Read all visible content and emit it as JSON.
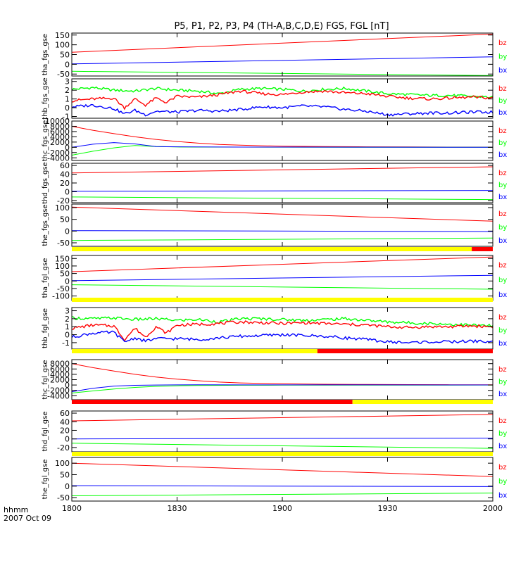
{
  "title": "P5, P1, P2, P3, P4 (TH-A,B,C,D,E) FGS, FGL [nT]",
  "footer": {
    "units_label": "hhmm",
    "date_label": "2007 Oct 09"
  },
  "colors": {
    "bx": "#0000ff",
    "by": "#00ff00",
    "bz": "#ff0000",
    "mode_slow": "#ffff00",
    "mode_fast": "#ff0000",
    "axis": "#000000"
  },
  "legend": [
    "bz",
    "by",
    "bx"
  ],
  "chart_data": {
    "type": "line",
    "x_axis": {
      "range": [
        0,
        120
      ],
      "tick_labels": [
        "1800",
        "1830",
        "1900",
        "1930",
        "2000"
      ],
      "unit": "minutes after 18:00 UT"
    },
    "panels": [
      {
        "id": "tha_fgs",
        "ylabel": "tha_fgs_gse",
        "ylim": [
          -60,
          160
        ],
        "yticks": [
          150,
          100,
          50,
          0,
          -50
        ],
        "series": [
          {
            "name": "bz",
            "x": [
              0,
              120
            ],
            "y": [
              62,
              155
            ]
          },
          {
            "name": "by",
            "x": [
              0,
              120
            ],
            "y": [
              -36,
              -58
            ]
          },
          {
            "name": "bx",
            "x": [
              0,
              120
            ],
            "y": [
              2,
              38
            ]
          }
        ]
      },
      {
        "id": "thb_fgs",
        "ylabel": "thb_fgs_gse",
        "ylim": [
          -1.2,
          3.3
        ],
        "yticks": [
          3,
          2,
          1,
          0,
          -1
        ],
        "series": [
          {
            "name": "by",
            "x": [
              0,
              6,
              12,
              18,
              24,
              30,
              36,
              42,
              48,
              54,
              60,
              66,
              72,
              78,
              84,
              90,
              96,
              102,
              108,
              114,
              120
            ],
            "y": [
              2.1,
              2.3,
              2.0,
              1.9,
              2.2,
              2.0,
              1.9,
              1.6,
              2.1,
              2.2,
              2.1,
              1.9,
              2.1,
              2.2,
              1.9,
              1.6,
              1.5,
              1.4,
              1.4,
              1.3,
              1.2
            ]
          },
          {
            "name": "bz",
            "x": [
              0,
              6,
              12,
              15,
              18,
              21,
              24,
              27,
              30,
              36,
              42,
              48,
              54,
              60,
              66,
              72,
              78,
              84,
              90,
              96,
              102,
              108,
              114,
              120
            ],
            "y": [
              0.8,
              1.0,
              1.1,
              0.0,
              1.0,
              0.3,
              1.1,
              0.6,
              1.3,
              1.2,
              1.5,
              1.9,
              1.6,
              1.5,
              1.8,
              1.9,
              1.7,
              1.6,
              1.3,
              1.1,
              1.0,
              1.1,
              1.2,
              1.1
            ]
          },
          {
            "name": "bx",
            "x": [
              0,
              6,
              12,
              15,
              18,
              21,
              24,
              30,
              36,
              42,
              48,
              54,
              60,
              66,
              72,
              78,
              84,
              90,
              96,
              102,
              108,
              114,
              120
            ],
            "y": [
              0.1,
              0.3,
              -0.1,
              -0.7,
              -0.3,
              -0.8,
              -0.4,
              -0.5,
              -0.3,
              -0.4,
              -0.2,
              0.1,
              0.0,
              0.2,
              0.1,
              -0.2,
              -0.4,
              -0.8,
              -0.7,
              -0.6,
              -0.6,
              -0.5,
              -0.5
            ]
          }
        ]
      },
      {
        "id": "thc_fgs",
        "ylabel": "thc_fgs_gse",
        "ylim": [
          -5000,
          10000
        ],
        "yticks": [
          10000,
          8000,
          6000,
          4000,
          2000,
          0,
          -2000,
          -4000
        ],
        "series": [
          {
            "name": "bz",
            "x": [
              0,
              6,
              12,
              18,
              24,
              30,
              36,
              42,
              48,
              54,
              60,
              72,
              84,
              96,
              108,
              120
            ],
            "y": [
              8000,
              6500,
              5200,
              4000,
              3000,
              2200,
              1600,
              1100,
              800,
              600,
              450,
              300,
              200,
              150,
              100,
              80
            ]
          },
          {
            "name": "by",
            "x": [
              0,
              6,
              12,
              18,
              24,
              30,
              36,
              48,
              60,
              84,
              108,
              120
            ],
            "y": [
              -3000,
              -1500,
              -200,
              700,
              300,
              150,
              100,
              80,
              60,
              40,
              30,
              20
            ]
          },
          {
            "name": "bx",
            "x": [
              0,
              6,
              12,
              18,
              24,
              30,
              36,
              48,
              60,
              84,
              108,
              120
            ],
            "y": [
              0,
              1200,
              1800,
              1300,
              300,
              200,
              150,
              100,
              80,
              60,
              40,
              30
            ]
          }
        ]
      },
      {
        "id": "thd_fgs",
        "ylabel": "thd_fgs_gse",
        "ylim": [
          -25,
          65
        ],
        "yticks": [
          60,
          40,
          20,
          0,
          -20
        ],
        "series": [
          {
            "name": "bz",
            "x": [
              0,
              120
            ],
            "y": [
              43,
              57
            ]
          },
          {
            "name": "by",
            "x": [
              0,
              120
            ],
            "y": [
              -12,
              -18
            ]
          },
          {
            "name": "bx",
            "x": [
              0,
              120
            ],
            "y": [
              1,
              3
            ]
          }
        ]
      },
      {
        "id": "the_fgs",
        "ylabel": "the_fgs_gse",
        "ylim": [
          -65,
          115
        ],
        "yticks": [
          100,
          50,
          0,
          -50
        ],
        "series": [
          {
            "name": "bz",
            "x": [
              0,
              120
            ],
            "y": [
              102,
              42
            ]
          },
          {
            "name": "by",
            "x": [
              0,
              120
            ],
            "y": [
              -40,
              -30
            ]
          },
          {
            "name": "bx",
            "x": [
              0,
              120
            ],
            "y": [
              2,
              -2
            ]
          }
        ]
      },
      {
        "id": "tha_fgl",
        "ylabel": "tha_fgl_gse",
        "ylim": [
          -130,
          170
        ],
        "yticks": [
          150,
          100,
          50,
          0,
          -50,
          -100
        ],
        "series": [
          {
            "name": "bz",
            "x": [
              0,
              120
            ],
            "y": [
              62,
              160
            ]
          },
          {
            "name": "by",
            "x": [
              0,
              120
            ],
            "y": [
              -25,
              -55
            ]
          },
          {
            "name": "bx",
            "x": [
              0,
              120
            ],
            "y": [
              2,
              38
            ]
          }
        ]
      },
      {
        "id": "thb_fgl",
        "ylabel": "thb_fgl_gse",
        "ylim": [
          -1.8,
          3.4
        ],
        "yticks": [
          3,
          2,
          1,
          0,
          -1
        ],
        "series": [
          {
            "name": "by",
            "x": [
              0,
              6,
              12,
              18,
              24,
              30,
              36,
              42,
              48,
              54,
              60,
              66,
              72,
              78,
              84,
              90,
              96,
              102,
              108,
              114,
              120
            ],
            "y": [
              2.1,
              2.0,
              2.1,
              1.9,
              2.0,
              1.8,
              1.9,
              1.6,
              2.0,
              2.0,
              1.9,
              1.8,
              1.9,
              2.0,
              1.8,
              1.6,
              1.5,
              1.4,
              1.3,
              1.2,
              1.1
            ]
          },
          {
            "name": "bz",
            "x": [
              0,
              6,
              12,
              15,
              18,
              21,
              24,
              27,
              30,
              36,
              42,
              48,
              54,
              60,
              66,
              72,
              78,
              84,
              90,
              96,
              102,
              108,
              114,
              120
            ],
            "y": [
              0.8,
              1.2,
              1.1,
              -0.6,
              0.8,
              -0.3,
              1.0,
              0.2,
              1.2,
              1.3,
              1.4,
              1.6,
              1.5,
              1.4,
              1.5,
              1.4,
              1.3,
              1.2,
              1.0,
              0.9,
              1.0,
              1.0,
              1.1,
              1.0
            ]
          },
          {
            "name": "bx",
            "x": [
              0,
              6,
              12,
              15,
              18,
              21,
              24,
              30,
              36,
              42,
              48,
              54,
              60,
              66,
              72,
              78,
              84,
              90,
              96,
              102,
              108,
              114,
              120
            ],
            "y": [
              -0.3,
              0.2,
              0.3,
              -0.9,
              -0.4,
              -0.8,
              -0.5,
              -0.5,
              -0.6,
              -0.4,
              -0.2,
              -0.1,
              0.0,
              -0.1,
              -0.2,
              -0.4,
              -0.6,
              -0.9,
              -1.0,
              -0.9,
              -0.9,
              -0.8,
              -0.9
            ]
          }
        ]
      },
      {
        "id": "thc_fgl",
        "ylabel": "thc_fgl_gse",
        "ylim": [
          -5500,
          9500
        ],
        "yticks": [
          8000,
          6000,
          4000,
          2000,
          0,
          -2000,
          -4000
        ],
        "series": [
          {
            "name": "bz",
            "x": [
              0,
              6,
              12,
              18,
              24,
              30,
              36,
              42,
              48,
              54,
              60,
              72,
              84,
              96,
              108,
              120
            ],
            "y": [
              8000,
              6500,
              5200,
              4000,
              3000,
              2200,
              1600,
              1100,
              800,
              600,
              450,
              300,
              200,
              150,
              100,
              80
            ]
          },
          {
            "name": "by",
            "x": [
              0,
              6,
              12,
              18,
              24,
              30,
              36,
              48,
              60,
              84,
              108,
              120
            ],
            "y": [
              -3000,
              -2200,
              -1500,
              -900,
              -500,
              -300,
              -150,
              -80,
              -50,
              -30,
              -20,
              -10
            ]
          },
          {
            "name": "bx",
            "x": [
              0,
              6,
              12,
              18,
              24,
              30,
              36,
              48,
              60,
              84,
              108,
              120
            ],
            "y": [
              -2500,
              -1200,
              -400,
              -100,
              0,
              50,
              80,
              60,
              50,
              40,
              30,
              20
            ]
          }
        ]
      },
      {
        "id": "thd_fgl",
        "ylabel": "thd_fgl_gse",
        "ylim": [
          -30,
          65
        ],
        "yticks": [
          60,
          40,
          20,
          0,
          -20
        ],
        "series": [
          {
            "name": "bz",
            "x": [
              0,
              120
            ],
            "y": [
              42,
              57
            ]
          },
          {
            "name": "by",
            "x": [
              0,
              120
            ],
            "y": [
              -10,
              -22
            ]
          },
          {
            "name": "bx",
            "x": [
              0,
              120
            ],
            "y": [
              0,
              2
            ]
          }
        ]
      },
      {
        "id": "the_fgl",
        "ylabel": "the_fgl_gse",
        "ylim": [
          -65,
          125
        ],
        "yticks": [
          100,
          50,
          0,
          -50
        ],
        "series": [
          {
            "name": "bz",
            "x": [
              0,
              120
            ],
            "y": [
              100,
              42
            ]
          },
          {
            "name": "by",
            "x": [
              0,
              120
            ],
            "y": [
              -42,
              -30
            ]
          },
          {
            "name": "bx",
            "x": [
              0,
              120
            ],
            "y": [
              2,
              -2
            ]
          }
        ]
      }
    ],
    "mode_bars": [
      {
        "after_panel": 4,
        "segments": [
          {
            "from": 0,
            "to": 114,
            "mode": "slow"
          },
          {
            "from": 114,
            "to": 120,
            "mode": "fast"
          }
        ]
      },
      {
        "after_panel": 5,
        "segments": [
          {
            "from": 0,
            "to": 120,
            "mode": "slow"
          }
        ]
      },
      {
        "after_panel": 6,
        "segments": [
          {
            "from": 0,
            "to": 70,
            "mode": "slow"
          },
          {
            "from": 70,
            "to": 120,
            "mode": "fast"
          }
        ]
      },
      {
        "after_panel": 7,
        "segments": [
          {
            "from": 0,
            "to": 80,
            "mode": "fast"
          },
          {
            "from": 80,
            "to": 120,
            "mode": "slow"
          }
        ]
      },
      {
        "after_panel": 8,
        "segments": [
          {
            "from": 0,
            "to": 120,
            "mode": "slow"
          }
        ]
      }
    ]
  }
}
